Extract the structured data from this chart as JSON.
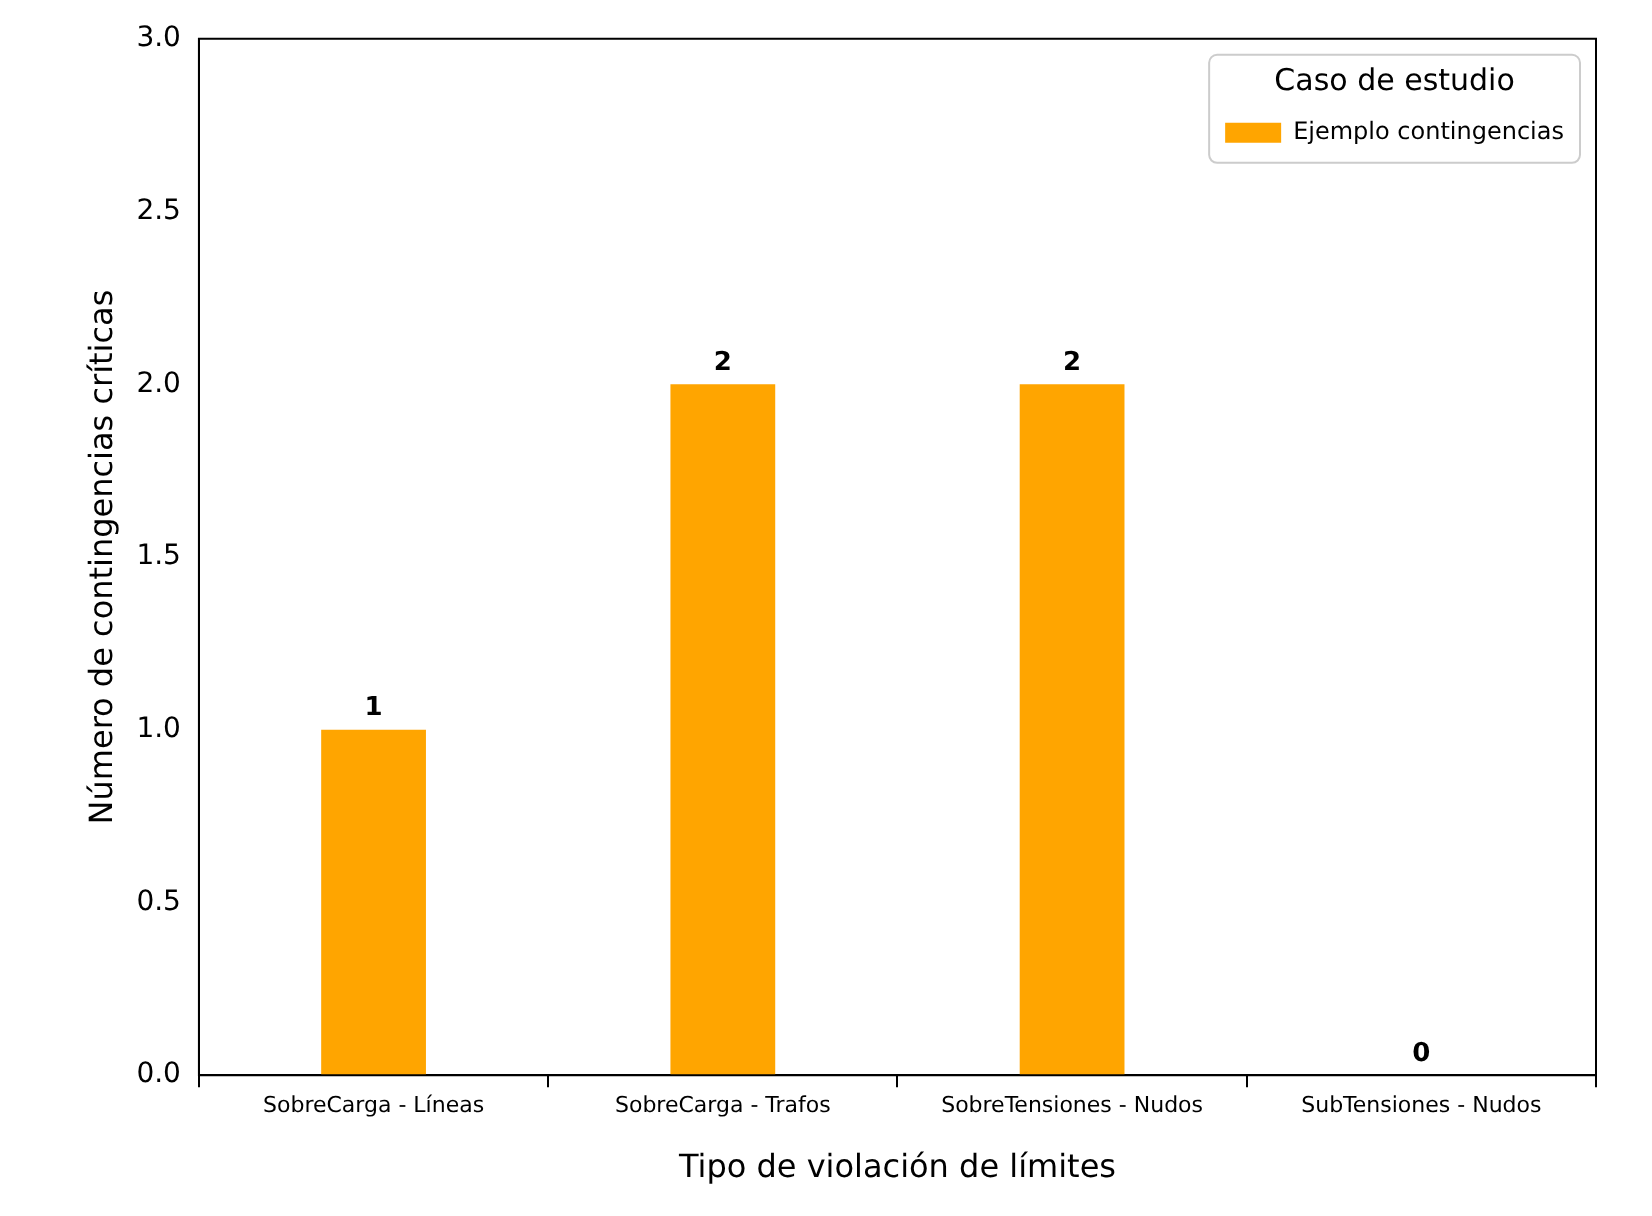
{
  "chart_data": {
    "type": "bar",
    "xlabel": "Tipo de violación de límites",
    "ylabel": "Número de contingencias críticas",
    "legend_title": "Caso de estudio",
    "categories": [
      "SobreCarga - Líneas",
      "SobreCarga - Trafos",
      "SobreTensiones - Nudos",
      "SubTensiones - Nudos"
    ],
    "series": [
      {
        "name": "Ejemplo contingencias",
        "color": "#ffa500",
        "values": [
          1,
          2,
          2,
          0
        ]
      }
    ],
    "ylim": [
      0,
      3
    ],
    "yticks": [
      {
        "value": 0,
        "label": "0.0"
      },
      {
        "value": 0.5,
        "label": "0.5"
      },
      {
        "value": 1,
        "label": "1.0"
      },
      {
        "value": 1.5,
        "label": "1.5"
      },
      {
        "value": 2,
        "label": "2.0"
      },
      {
        "value": 2.5,
        "label": "2.5"
      },
      {
        "value": 3,
        "label": "3.0"
      }
    ],
    "grid": false,
    "legend": "top right",
    "data_labels": true
  }
}
